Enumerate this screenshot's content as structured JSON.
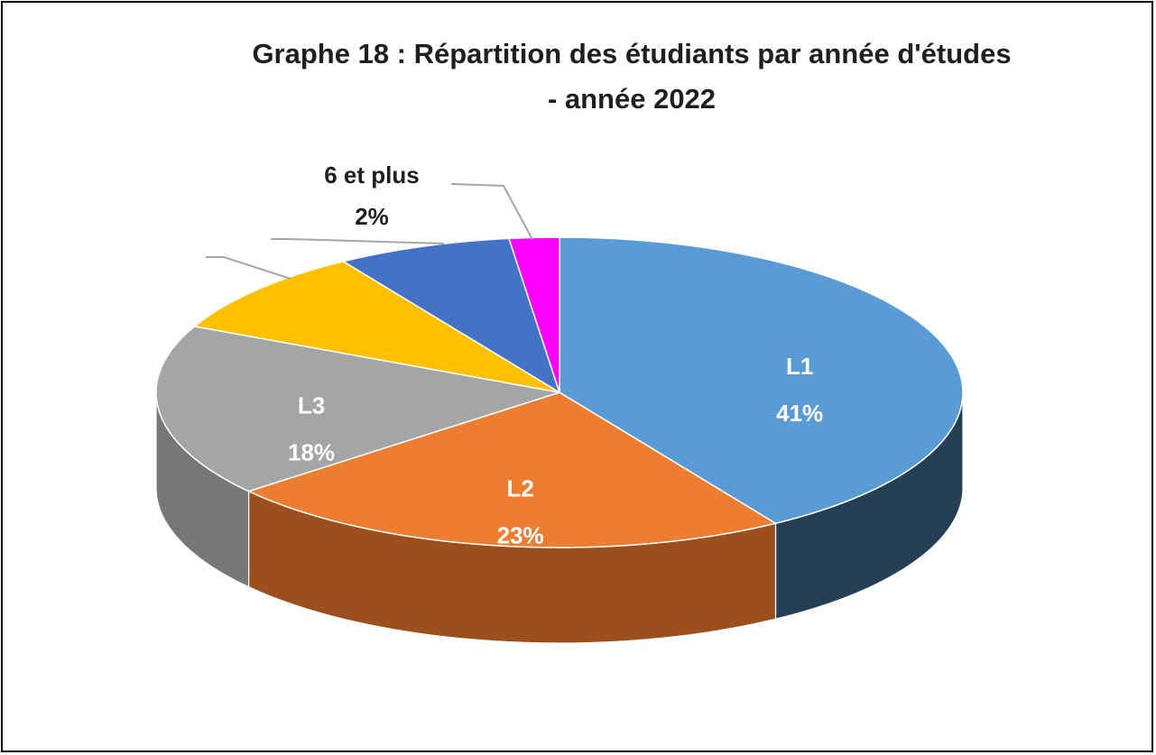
{
  "chart_data": {
    "type": "pie",
    "three_d": true,
    "title": "Graphe 18 : Répartition des étudiants par année d'études",
    "subtitle": "- année 2022",
    "slices": [
      {
        "label": "L1",
        "value": 41,
        "percent_label": "41%",
        "color": "#5B9BD5",
        "side_color": "#243F56",
        "label_position": "inside"
      },
      {
        "label": "L2",
        "value": 23,
        "percent_label": "23%",
        "color": "#ED7D31",
        "side_color": "#9C4E1C",
        "label_position": "inside"
      },
      {
        "label": "L3",
        "value": 18,
        "percent_label": "18%",
        "color": "#A5A5A5",
        "side_color": "#777777",
        "label_position": "inside"
      },
      {
        "label": "",
        "value": 9,
        "percent_label": "",
        "color": "#FFC000",
        "side_color": "#B38600",
        "label_position": "outside"
      },
      {
        "label": "",
        "value": 7,
        "percent_label": "",
        "color": "#4472C4",
        "side_color": "#2C4A80",
        "label_position": "outside"
      },
      {
        "label": "6 et plus",
        "value": 2,
        "percent_label": "2%",
        "color": "#FF00FF",
        "side_color": "#A000A0",
        "label_position": "outside"
      }
    ],
    "legend": "none"
  }
}
